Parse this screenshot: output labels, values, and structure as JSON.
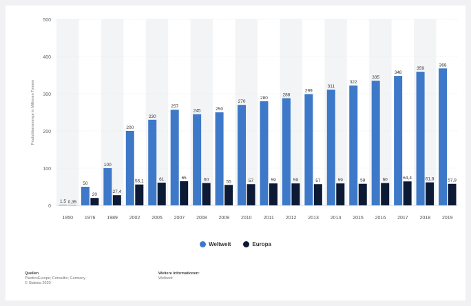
{
  "chart_data": {
    "type": "bar",
    "ylabel": "Produktionsmenge in Millionen Tonnen",
    "ylim": [
      0,
      500
    ],
    "yticks": [
      "0",
      "100",
      "200",
      "300",
      "400",
      "500"
    ],
    "categories": [
      "1950",
      "1976",
      "1989",
      "2002",
      "2005",
      "2007",
      "2008",
      "2009",
      "2010",
      "2011",
      "2012",
      "2013",
      "2014",
      "2015",
      "2016",
      "2017",
      "2018",
      "2019"
    ],
    "series": [
      {
        "name": "Weltweit",
        "color": "#3d79c8",
        "values": [
          1.5,
          50,
          100,
          200,
          230,
          257,
          245,
          250,
          270,
          280,
          288,
          299,
          311,
          322,
          335,
          348,
          359,
          368
        ],
        "labels": [
          "1,5",
          "50",
          "100",
          "200",
          "230",
          "257",
          "245",
          "250",
          "270",
          "280",
          "288",
          "299",
          "311",
          "322",
          "335",
          "348",
          "359",
          "368"
        ]
      },
      {
        "name": "Europa",
        "color": "#0d1a35",
        "values": [
          0.35,
          20,
          27.4,
          56.1,
          61,
          65,
          60,
          55,
          57,
          59,
          59,
          57,
          59,
          58,
          60,
          64.4,
          61.8,
          57.9
        ],
        "labels": [
          "0,35",
          "20",
          "27,4",
          "56,1",
          "61",
          "65",
          "60",
          "55",
          "57",
          "59",
          "59",
          "57",
          "59",
          "58",
          "60",
          "64,4",
          "61,8",
          "57,9"
        ]
      }
    ],
    "legend_position": "bottom-center",
    "grid": "alternating column shading"
  },
  "footer": {
    "source_heading": "Quellen",
    "source_lines": [
      "PlasticsEurope; Consultic; Germany",
      "© Statista 2020"
    ],
    "info_heading": "Weitere Informationen:",
    "info_lines": [
      "Weltweit"
    ]
  }
}
